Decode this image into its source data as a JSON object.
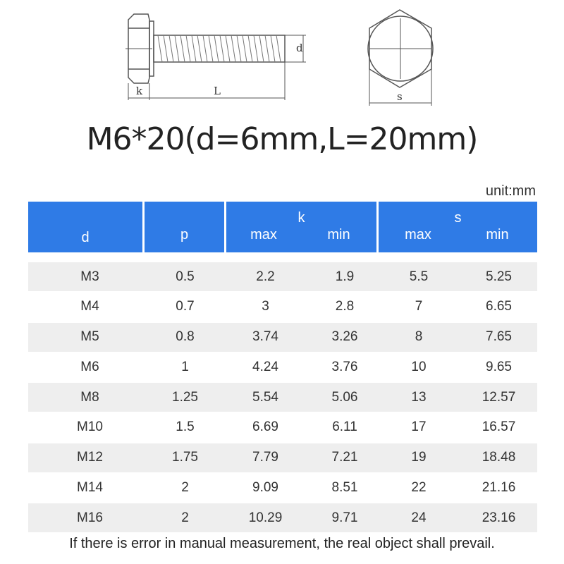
{
  "diagram": {
    "label_k": "k",
    "label_L": "L",
    "label_d": "d",
    "label_s": "s"
  },
  "title": "M6*20(d=6mm,L=20mm)",
  "unit": "unit:mm",
  "header": {
    "d": "d",
    "p": "p",
    "k": "k",
    "k_max": "max",
    "k_min": "min",
    "s": "s",
    "s_max": "max",
    "s_min": "min"
  },
  "rows": [
    [
      "M3",
      "0.5",
      "2.2",
      "1.9",
      "5.5",
      "5.25"
    ],
    [
      "M4",
      "0.7",
      "3",
      "2.8",
      "7",
      "6.65"
    ],
    [
      "M5",
      "0.8",
      "3.74",
      "3.26",
      "8",
      "7.65"
    ],
    [
      "M6",
      "1",
      "4.24",
      "3.76",
      "10",
      "9.65"
    ],
    [
      "M8",
      "1.25",
      "5.54",
      "5.06",
      "13",
      "12.57"
    ],
    [
      "M10",
      "1.5",
      "6.69",
      "6.11",
      "17",
      "16.57"
    ],
    [
      "M12",
      "1.75",
      "7.79",
      "7.21",
      "19",
      "18.48"
    ],
    [
      "M14",
      "2",
      "9.09",
      "8.51",
      "22",
      "21.16"
    ],
    [
      "M16",
      "2",
      "10.29",
      "9.71",
      "24",
      "23.16"
    ]
  ],
  "footer": "If there is error in manual measurement, the real object shall prevail.",
  "colors": {
    "header_bg": "#2f7be6",
    "row_shade": "#eeeeee"
  }
}
